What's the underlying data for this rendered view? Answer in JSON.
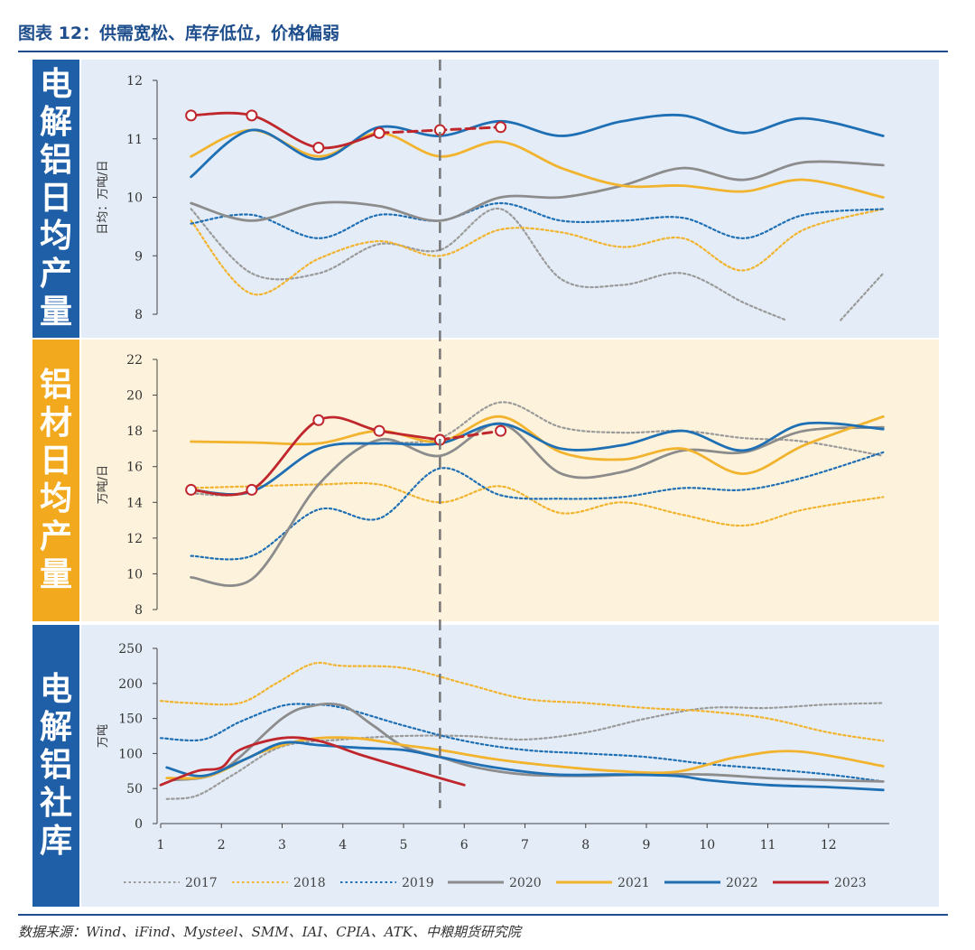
{
  "title": "图表 12：供需宽松、库存低位，价格偏弱",
  "source": "数据来源：Wind、iFind、Mysteel、SMM、IAI、CPIA、ATK、中粮期货研究院",
  "colors": {
    "2017": "#9a9a9a",
    "2018": "#f2b32e",
    "2019": "#1f6fb5",
    "2020": "#8c8c8c",
    "2021": "#f2b32e",
    "2022": "#1f6fb5",
    "2023": "#c0272d",
    "blue_block": "#1f5fa8",
    "yellow_block": "#f2a91e",
    "panel_blue": "#e4edf7",
    "panel_yellow": "#fdf3dc"
  },
  "legend": [
    {
      "name": "2017",
      "style": "dotted",
      "color": "#9a9a9a"
    },
    {
      "name": "2018",
      "style": "dotted",
      "color": "#f2b32e"
    },
    {
      "name": "2019",
      "style": "dotted",
      "color": "#1f6fb5"
    },
    {
      "name": "2020",
      "style": "solid",
      "color": "#8c8c8c"
    },
    {
      "name": "2021",
      "style": "solid",
      "color": "#f2b32e"
    },
    {
      "name": "2022",
      "style": "solid",
      "color": "#1f6fb5"
    },
    {
      "name": "2023",
      "style": "solid",
      "color": "#c0272d"
    }
  ],
  "vline_month": 5.6,
  "chart_data": [
    {
      "type": "line",
      "side_label": "电解铝日均产量",
      "ylabel": "日均：万吨/日",
      "ylim": [
        8,
        12
      ],
      "yticks": [
        "8",
        "9",
        "10",
        "11",
        "12"
      ],
      "series": [
        {
          "name": "2017",
          "style": "dotted",
          "x": [
            1.5,
            2.5,
            3.6,
            4.6,
            5.6,
            6.6,
            7.6,
            8.6,
            9.6,
            10.6,
            11.3
          ],
          "values": [
            9.8,
            8.7,
            8.7,
            9.2,
            9.1,
            9.8,
            8.6,
            8.5,
            8.7,
            8.2,
            7.9
          ]
        },
        {
          "name": "2017b",
          "style": "dotted",
          "x": [
            12.2,
            12.9
          ],
          "values": [
            7.9,
            8.7
          ]
        },
        {
          "name": "2018",
          "style": "dotted",
          "x": [
            1.5,
            2.5,
            3.6,
            4.6,
            5.6,
            6.6,
            7.6,
            8.6,
            9.6,
            10.6,
            11.6,
            12.9
          ],
          "values": [
            9.6,
            8.35,
            8.95,
            9.25,
            9.0,
            9.45,
            9.4,
            9.15,
            9.3,
            8.75,
            9.45,
            9.8
          ]
        },
        {
          "name": "2019",
          "style": "dotted",
          "x": [
            1.5,
            2.5,
            3.6,
            4.6,
            5.6,
            6.6,
            7.6,
            8.6,
            9.6,
            10.6,
            11.6,
            12.9
          ],
          "values": [
            9.55,
            9.7,
            9.3,
            9.7,
            9.6,
            9.9,
            9.6,
            9.6,
            9.65,
            9.3,
            9.7,
            9.8
          ]
        },
        {
          "name": "2020",
          "style": "solid",
          "x": [
            1.5,
            2.5,
            3.6,
            4.6,
            5.6,
            6.6,
            7.6,
            8.6,
            9.6,
            10.6,
            11.6,
            12.9
          ],
          "values": [
            9.9,
            9.6,
            9.9,
            9.85,
            9.6,
            10.0,
            10.0,
            10.2,
            10.5,
            10.3,
            10.6,
            10.55
          ]
        },
        {
          "name": "2021",
          "style": "solid",
          "x": [
            1.5,
            2.5,
            3.6,
            4.6,
            5.6,
            6.6,
            7.6,
            8.6,
            9.6,
            10.6,
            11.6,
            12.9
          ],
          "values": [
            10.7,
            11.15,
            10.7,
            11.1,
            10.7,
            10.95,
            10.5,
            10.2,
            10.2,
            10.1,
            10.3,
            10.0
          ]
        },
        {
          "name": "2022",
          "style": "solid",
          "x": [
            1.5,
            2.5,
            3.6,
            4.6,
            5.6,
            6.6,
            7.6,
            8.6,
            9.6,
            10.6,
            11.6,
            12.9
          ],
          "values": [
            10.35,
            11.15,
            10.65,
            11.2,
            11.05,
            11.3,
            11.05,
            11.3,
            11.4,
            11.1,
            11.35,
            11.05
          ]
        },
        {
          "name": "2023",
          "style": "solid",
          "markers": true,
          "x": [
            1.5,
            2.5,
            3.6,
            4.6
          ],
          "values": [
            11.4,
            11.4,
            10.85,
            11.1
          ]
        },
        {
          "name": "2023f",
          "style": "dashed",
          "markers": true,
          "x": [
            4.6,
            5.6,
            6.6
          ],
          "values": [
            11.1,
            11.15,
            11.2
          ]
        }
      ]
    },
    {
      "type": "line",
      "side_label": "铝材日均产量",
      "ylabel": "万吨/日",
      "ylim": [
        8,
        22
      ],
      "yticks": [
        "8",
        "10",
        "12",
        "14",
        "16",
        "18",
        "20",
        "22"
      ],
      "series": [
        {
          "name": "2017",
          "style": "dotted",
          "x": [
            1.5,
            2.5,
            3.6,
            4.6,
            5.6,
            6.6,
            7.6,
            8.6,
            9.6,
            10.6,
            11.6,
            12.9
          ],
          "values": [
            14.5,
            14.6,
            17.0,
            17.3,
            17.6,
            19.6,
            18.2,
            17.9,
            18.0,
            17.6,
            17.4,
            16.6
          ]
        },
        {
          "name": "2018",
          "style": "dotted",
          "x": [
            1.5,
            2.5,
            3.6,
            4.6,
            5.6,
            6.6,
            7.6,
            8.6,
            9.6,
            10.6,
            11.6,
            12.9
          ],
          "values": [
            14.8,
            14.9,
            15.0,
            15.0,
            14.0,
            14.9,
            13.4,
            14.0,
            13.3,
            12.7,
            13.6,
            14.3
          ]
        },
        {
          "name": "2019",
          "style": "dotted",
          "x": [
            1.5,
            2.5,
            3.6,
            4.6,
            5.6,
            6.6,
            7.6,
            8.6,
            9.6,
            10.6,
            11.6,
            12.9
          ],
          "values": [
            11.0,
            11.0,
            13.6,
            13.1,
            15.9,
            14.4,
            14.2,
            14.3,
            14.8,
            14.7,
            15.4,
            16.8
          ]
        },
        {
          "name": "2020",
          "style": "solid",
          "x": [
            1.5,
            2.5,
            3.6,
            4.6,
            5.6,
            6.6,
            7.6,
            8.6,
            9.6,
            10.6,
            11.6,
            12.9
          ],
          "values": [
            9.8,
            9.7,
            15.0,
            17.5,
            16.6,
            18.4,
            15.6,
            15.7,
            16.9,
            16.8,
            18.0,
            18.2
          ]
        },
        {
          "name": "2021",
          "style": "solid",
          "x": [
            1.5,
            2.5,
            3.6,
            4.6,
            5.6,
            6.6,
            7.6,
            8.6,
            9.6,
            10.6,
            11.6,
            12.9
          ],
          "values": [
            17.4,
            17.35,
            17.3,
            18.0,
            17.4,
            18.8,
            16.8,
            16.4,
            17.0,
            15.6,
            17.2,
            18.8
          ]
        },
        {
          "name": "2022",
          "style": "solid",
          "x": [
            1.5,
            2.5,
            3.6,
            4.6,
            5.6,
            6.6,
            7.6,
            8.6,
            9.6,
            10.6,
            11.6,
            12.9
          ],
          "values": [
            14.7,
            14.6,
            17.0,
            17.3,
            17.3,
            18.4,
            17.0,
            17.2,
            18.0,
            16.9,
            18.4,
            18.1
          ]
        },
        {
          "name": "2023",
          "style": "solid",
          "markers": true,
          "x": [
            1.5,
            2.5,
            3.6,
            4.6,
            5.6
          ],
          "values": [
            14.7,
            14.7,
            18.6,
            18.0,
            17.5
          ]
        },
        {
          "name": "2023f",
          "style": "dashed",
          "markers": true,
          "x": [
            5.6,
            6.6
          ],
          "values": [
            17.5,
            18.0
          ]
        }
      ]
    },
    {
      "type": "line",
      "side_label": "电解铝社库",
      "ylabel": "万吨",
      "ylim": [
        0,
        250
      ],
      "yticks": [
        "0",
        "50",
        "100",
        "150",
        "200",
        "250"
      ],
      "xticks": [
        "1",
        "2",
        "3",
        "4",
        "5",
        "6",
        "7",
        "8",
        "9",
        "10",
        "11",
        "12"
      ],
      "series": [
        {
          "name": "2017",
          "style": "dotted",
          "x": [
            1.1,
            1.6,
            2.2,
            3.0,
            4.0,
            5.0,
            6.0,
            7.0,
            8.0,
            9.0,
            10.0,
            11.0,
            12.0,
            12.9
          ],
          "values": [
            35,
            40,
            70,
            110,
            120,
            125,
            125,
            120,
            130,
            150,
            165,
            165,
            170,
            172
          ]
        },
        {
          "name": "2018",
          "style": "dotted",
          "x": [
            1.0,
            1.5,
            2.3,
            2.9,
            3.5,
            4.0,
            5.0,
            6.0,
            7.0,
            8.0,
            9.0,
            10.0,
            11.0,
            12.0,
            12.9
          ],
          "values": [
            175,
            172,
            172,
            200,
            228,
            225,
            222,
            200,
            178,
            172,
            165,
            160,
            150,
            130,
            118
          ]
        },
        {
          "name": "2019",
          "style": "dotted",
          "x": [
            1.0,
            1.7,
            2.3,
            3.0,
            3.5,
            4.0,
            5.0,
            6.0,
            7.0,
            8.0,
            9.0,
            10.0,
            11.0,
            12.0,
            12.9
          ],
          "values": [
            122,
            120,
            145,
            168,
            170,
            165,
            140,
            118,
            105,
            100,
            95,
            85,
            78,
            70,
            60
          ]
        },
        {
          "name": "2020",
          "style": "solid",
          "x": [
            1.2,
            2.0,
            3.0,
            3.5,
            4.0,
            4.5,
            5.0,
            5.6,
            6.2,
            7.0,
            8.0,
            9.0,
            10.0,
            11.0,
            12.0,
            12.9
          ],
          "values": [
            62,
            75,
            150,
            168,
            168,
            140,
            110,
            95,
            80,
            70,
            68,
            70,
            70,
            65,
            62,
            60
          ]
        },
        {
          "name": "2021",
          "style": "solid",
          "x": [
            1.1,
            1.8,
            2.6,
            3.4,
            4.2,
            5.0,
            5.6,
            6.5,
            7.5,
            8.5,
            9.5,
            10.5,
            11.5,
            12.9
          ],
          "values": [
            65,
            68,
            100,
            120,
            122,
            112,
            105,
            92,
            82,
            75,
            74,
            95,
            103,
            82
          ]
        },
        {
          "name": "2022",
          "style": "solid",
          "x": [
            1.1,
            1.7,
            2.4,
            3.0,
            3.6,
            4.3,
            5.0,
            5.6,
            6.5,
            7.5,
            8.5,
            9.5,
            10.0,
            11.0,
            12.0,
            12.9
          ],
          "values": [
            80,
            68,
            92,
            115,
            112,
            108,
            105,
            95,
            80,
            70,
            70,
            68,
            62,
            55,
            52,
            48
          ]
        },
        {
          "name": "2023",
          "style": "solid",
          "x": [
            1.0,
            1.6,
            2.0,
            2.3,
            3.0,
            3.6,
            4.3,
            5.0,
            5.6,
            6.0
          ],
          "values": [
            55,
            75,
            80,
            105,
            122,
            118,
            98,
            80,
            65,
            55
          ]
        }
      ]
    }
  ]
}
